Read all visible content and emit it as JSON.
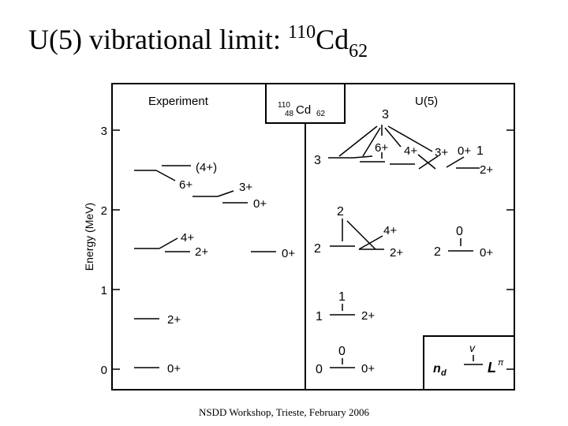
{
  "title": {
    "text": "U(5) vibrational limit: ",
    "mass_number": "110",
    "element": "Cd",
    "neutron_number": "62"
  },
  "figure": {
    "panel_experiment": "Experiment",
    "nucleus_box": {
      "mass": "110",
      "atomic": "48",
      "symbol": "Cd",
      "neutron": "62"
    },
    "panel_model": "U(5)",
    "y_axis_label": "Energy (MeV)",
    "y_ticks": [
      "0",
      "1",
      "2",
      "3"
    ],
    "experiment_levels": [
      "0+",
      "2+",
      "4+",
      "2+",
      "0+",
      "3+",
      "0+",
      "(4+)",
      "6+"
    ],
    "model_group_labels": [
      "0",
      "1",
      "2",
      "3"
    ],
    "model_state_labels": [
      "0",
      "1",
      "2",
      "2",
      "0",
      "3",
      "3"
    ],
    "model_levels": [
      "0+",
      "2+",
      "2+",
      "4+",
      "0+",
      "6+",
      "4+",
      "3+",
      "0+",
      "2+"
    ],
    "legend": {
      "v": "v",
      "nd": "n",
      "nd_sub": "d",
      "L": "L",
      "pi": "π"
    }
  },
  "footer": "NSDD Workshop, Trieste, February 2006"
}
